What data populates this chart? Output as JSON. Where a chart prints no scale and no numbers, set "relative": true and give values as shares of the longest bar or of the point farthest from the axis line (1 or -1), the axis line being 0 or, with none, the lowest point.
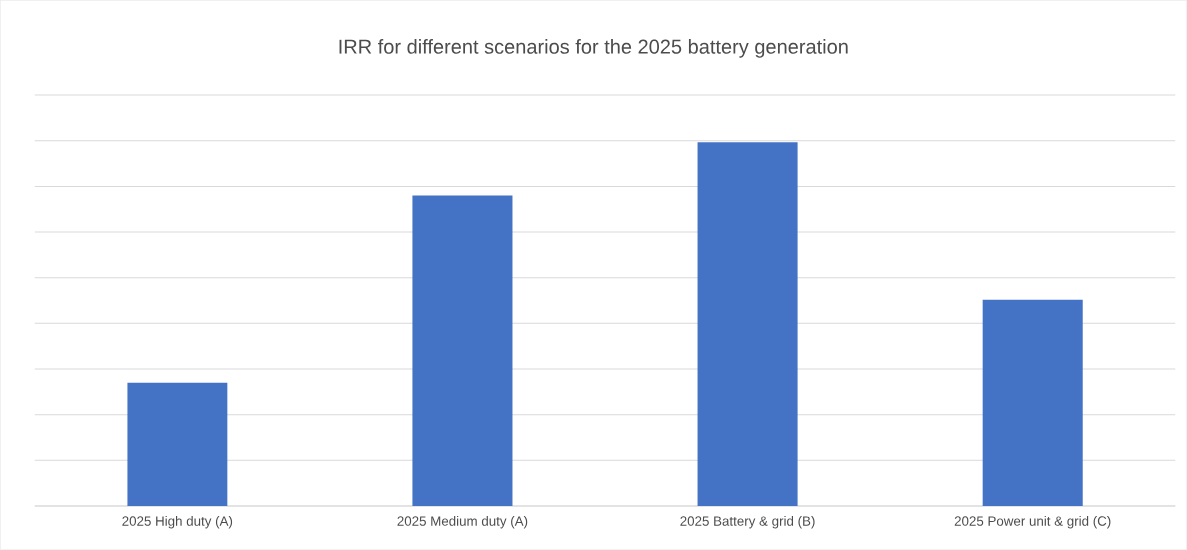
{
  "chart_data": {
    "type": "bar",
    "title": "IRR for different scenarios for the 2025 battery generation",
    "categories": [
      "2025 High duty (A)",
      "2025 Medium duty (A)",
      "2025 Battery & grid (B)",
      "2025 Power unit & grid (C)"
    ],
    "values": [
      0.339,
      0.854,
      1,
      0.567
    ],
    "color": "#4472c4",
    "relative": true,
    "grid": "y"
  }
}
